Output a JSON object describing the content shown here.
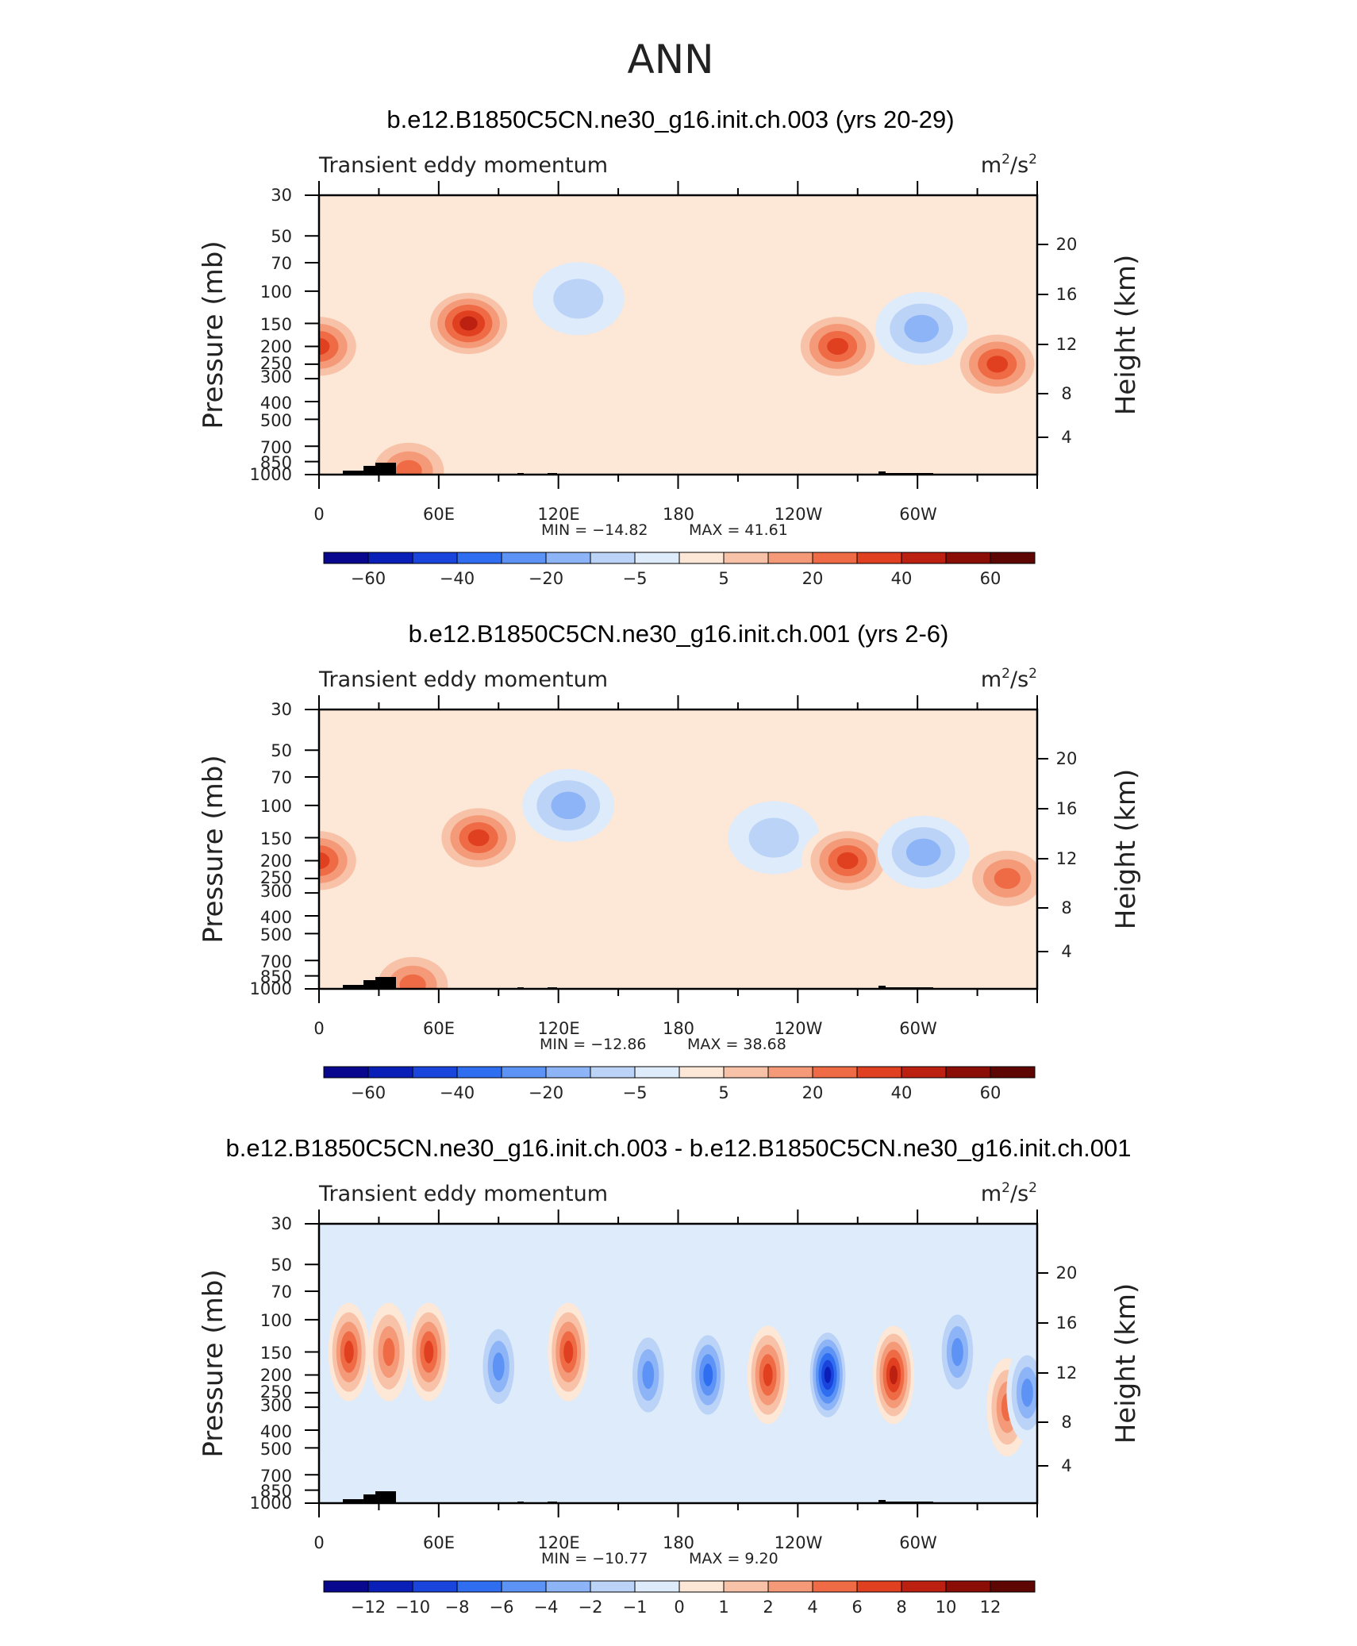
{
  "suptitle": "ANN",
  "chart_data": [
    {
      "type": "heatmap",
      "title": "b.e12.B1850C5CN.ne30_g16.init.ch.003 (yrs 20-29)",
      "left_string": "Transient eddy momentum",
      "units_base": "m",
      "units_exp1": "2",
      "units_sep": "/s",
      "units_exp2": "2",
      "ylabel": "Pressure (mb)",
      "ylabel_right": "Height (km)",
      "yticks": [
        "30",
        "50",
        "70",
        "100",
        "150",
        "200",
        "250",
        "300",
        "400",
        "500",
        "700",
        "850",
        "1000"
      ],
      "yticks_right": [
        "20",
        "16",
        "12",
        "8",
        "4"
      ],
      "xticks": [
        "0",
        "60E",
        "120E",
        "180",
        "120W",
        "60W"
      ],
      "min_label": "MIN = -14.82",
      "max_label": "MAX = 41.61",
      "colorbar_labels": [
        "-60",
        "-40",
        "-20",
        "-5",
        "5",
        "20",
        "40",
        "60"
      ],
      "features": [
        {
          "lon": 0,
          "p": 200,
          "value": 30
        },
        {
          "lon": 75,
          "p": 150,
          "value": 41.61
        },
        {
          "lon": 130,
          "p": 110,
          "value": -5
        },
        {
          "lon": 260,
          "p": 200,
          "value": 30
        },
        {
          "lon": 302,
          "p": 160,
          "value": -14.82
        },
        {
          "lon": 340,
          "p": 250,
          "value": 30
        },
        {
          "lon": 45,
          "p": 950,
          "value": 20
        }
      ]
    },
    {
      "type": "heatmap",
      "title": "b.e12.B1850C5CN.ne30_g16.init.ch.001 (yrs 2-6)",
      "left_string": "Transient eddy momentum",
      "units_base": "m",
      "units_exp1": "2",
      "units_sep": "/s",
      "units_exp2": "2",
      "ylabel": "Pressure (mb)",
      "ylabel_right": "Height (km)",
      "yticks": [
        "30",
        "50",
        "70",
        "100",
        "150",
        "200",
        "250",
        "300",
        "400",
        "500",
        "700",
        "850",
        "1000"
      ],
      "yticks_right": [
        "20",
        "16",
        "12",
        "8",
        "4"
      ],
      "xticks": [
        "0",
        "60E",
        "120E",
        "180",
        "120W",
        "60W"
      ],
      "min_label": "MIN = -12.86",
      "max_label": "MAX = 38.68",
      "colorbar_labels": [
        "-60",
        "-40",
        "-20",
        "-5",
        "5",
        "20",
        "40",
        "60"
      ],
      "features": [
        {
          "lon": 0,
          "p": 200,
          "value": 30
        },
        {
          "lon": 80,
          "p": 150,
          "value": 38.68
        },
        {
          "lon": 125,
          "p": 100,
          "value": -12.86
        },
        {
          "lon": 228,
          "p": 150,
          "value": -8
        },
        {
          "lon": 265,
          "p": 200,
          "value": 35
        },
        {
          "lon": 303,
          "p": 180,
          "value": -10
        },
        {
          "lon": 345,
          "p": 250,
          "value": 28
        },
        {
          "lon": 47,
          "p": 950,
          "value": 20
        }
      ]
    },
    {
      "type": "heatmap",
      "title": "b.e12.B1850C5CN.ne30_g16.init.ch.003 - b.e12.B1850C5CN.ne30_g16.init.ch.001",
      "left_string": "Transient eddy momentum",
      "units_base": "m",
      "units_exp1": "2",
      "units_sep": "/s",
      "units_exp2": "2",
      "ylabel": "Pressure (mb)",
      "ylabel_right": "Height (km)",
      "yticks": [
        "30",
        "50",
        "70",
        "100",
        "150",
        "200",
        "250",
        "300",
        "400",
        "500",
        "700",
        "850",
        "1000"
      ],
      "yticks_right": [
        "20",
        "16",
        "12",
        "8",
        "4"
      ],
      "xticks": [
        "0",
        "60E",
        "120E",
        "180",
        "120W",
        "60W"
      ],
      "min_label": "MIN = -10.77",
      "max_label": "MAX = 9.20",
      "colorbar_labels": [
        "-12",
        "-10",
        "-8",
        "-6",
        "-4",
        "-2",
        "-1",
        "0",
        "1",
        "2",
        "4",
        "6",
        "8",
        "10",
        "12"
      ],
      "features": [
        {
          "lon": 15,
          "p": 150,
          "value": 6
        },
        {
          "lon": 35,
          "p": 150,
          "value": 5
        },
        {
          "lon": 55,
          "p": 150,
          "value": 7
        },
        {
          "lon": 90,
          "p": 180,
          "value": -4
        },
        {
          "lon": 125,
          "p": 150,
          "value": 7
        },
        {
          "lon": 165,
          "p": 200,
          "value": -5
        },
        {
          "lon": 195,
          "p": 200,
          "value": -6
        },
        {
          "lon": 225,
          "p": 200,
          "value": 6
        },
        {
          "lon": 255,
          "p": 200,
          "value": -10.77
        },
        {
          "lon": 288,
          "p": 200,
          "value": 9.2
        },
        {
          "lon": 320,
          "p": 150,
          "value": -4
        },
        {
          "lon": 345,
          "p": 300,
          "value": 4
        },
        {
          "lon": 355,
          "p": 250,
          "value": -5
        }
      ]
    }
  ]
}
